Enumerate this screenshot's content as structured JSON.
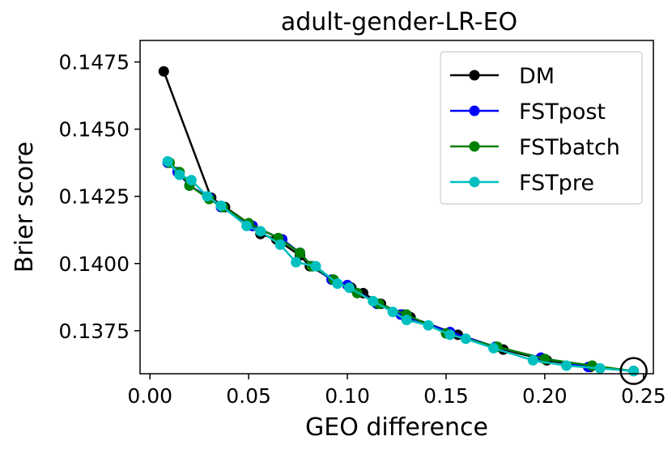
{
  "chart_data": {
    "type": "line",
    "title": "adult-gender-LR-EO",
    "xlabel": "GEO difference",
    "ylabel": "Brier score",
    "xlim": [
      -0.005,
      0.255
    ],
    "ylim": [
      0.1359,
      0.1483
    ],
    "xticks": [
      0.0,
      0.05,
      0.1,
      0.15,
      0.2,
      0.25
    ],
    "xtick_labels": [
      "0.00",
      "0.05",
      "0.10",
      "0.15",
      "0.20",
      "0.25"
    ],
    "yticks": [
      0.1375,
      0.14,
      0.1425,
      0.145,
      0.1475
    ],
    "ytick_labels": [
      "0.1375",
      "0.1400",
      "0.1425",
      "0.1450",
      "0.1475"
    ],
    "legend_position": "top-right",
    "annotation": "open circle marking the shared endpoint near (0.245, 0.1360)",
    "series": [
      {
        "name": "DM",
        "color": "#000000",
        "x": [
          0.007,
          0.031,
          0.038,
          0.052,
          0.056,
          0.064,
          0.076,
          0.081,
          0.093,
          0.102,
          0.108,
          0.117,
          0.128,
          0.132,
          0.156,
          0.179,
          0.201,
          0.223,
          0.245
        ],
        "y": [
          0.14715,
          0.14245,
          0.1421,
          0.1414,
          0.1411,
          0.1409,
          0.1403,
          0.1399,
          0.1394,
          0.1391,
          0.1389,
          0.1385,
          0.1381,
          0.138,
          0.13735,
          0.1368,
          0.1364,
          0.13615,
          0.136
        ]
      },
      {
        "name": "FSTpost",
        "color": "#0000ff",
        "x": [
          0.009,
          0.014,
          0.02,
          0.03,
          0.036,
          0.052,
          0.067,
          0.076,
          0.082,
          0.092,
          0.1,
          0.115,
          0.127,
          0.152,
          0.175,
          0.198,
          0.222,
          0.245
        ],
        "y": [
          0.14375,
          0.1434,
          0.1429,
          0.14245,
          0.1421,
          0.1414,
          0.1409,
          0.1404,
          0.1399,
          0.1394,
          0.1392,
          0.1385,
          0.1381,
          0.13745,
          0.1369,
          0.1365,
          0.13615,
          0.136
        ]
      },
      {
        "name": "FSTbatch",
        "color": "#008000",
        "x": [
          0.01,
          0.015,
          0.02,
          0.03,
          0.037,
          0.05,
          0.065,
          0.076,
          0.082,
          0.093,
          0.105,
          0.116,
          0.13,
          0.15,
          0.176,
          0.2,
          0.224,
          0.245
        ],
        "y": [
          0.14375,
          0.1434,
          0.1429,
          0.1424,
          0.1421,
          0.1415,
          0.14095,
          0.1404,
          0.1399,
          0.1394,
          0.1389,
          0.1385,
          0.1381,
          0.1374,
          0.1369,
          0.13645,
          0.1362,
          0.136
        ]
      },
      {
        "name": "FSTpre",
        "color": "#00bfbf",
        "x": [
          0.009,
          0.015,
          0.021,
          0.029,
          0.036,
          0.049,
          0.056,
          0.066,
          0.074,
          0.084,
          0.095,
          0.101,
          0.113,
          0.123,
          0.13,
          0.141,
          0.152,
          0.16,
          0.174,
          0.194,
          0.211,
          0.228,
          0.245
        ],
        "y": [
          0.1438,
          0.1433,
          0.1431,
          0.1425,
          0.14215,
          0.1414,
          0.1412,
          0.1407,
          0.14005,
          0.1399,
          0.13925,
          0.1391,
          0.1386,
          0.1382,
          0.1379,
          0.1377,
          0.13735,
          0.1372,
          0.13685,
          0.1364,
          0.1362,
          0.1361,
          0.136
        ]
      }
    ]
  }
}
